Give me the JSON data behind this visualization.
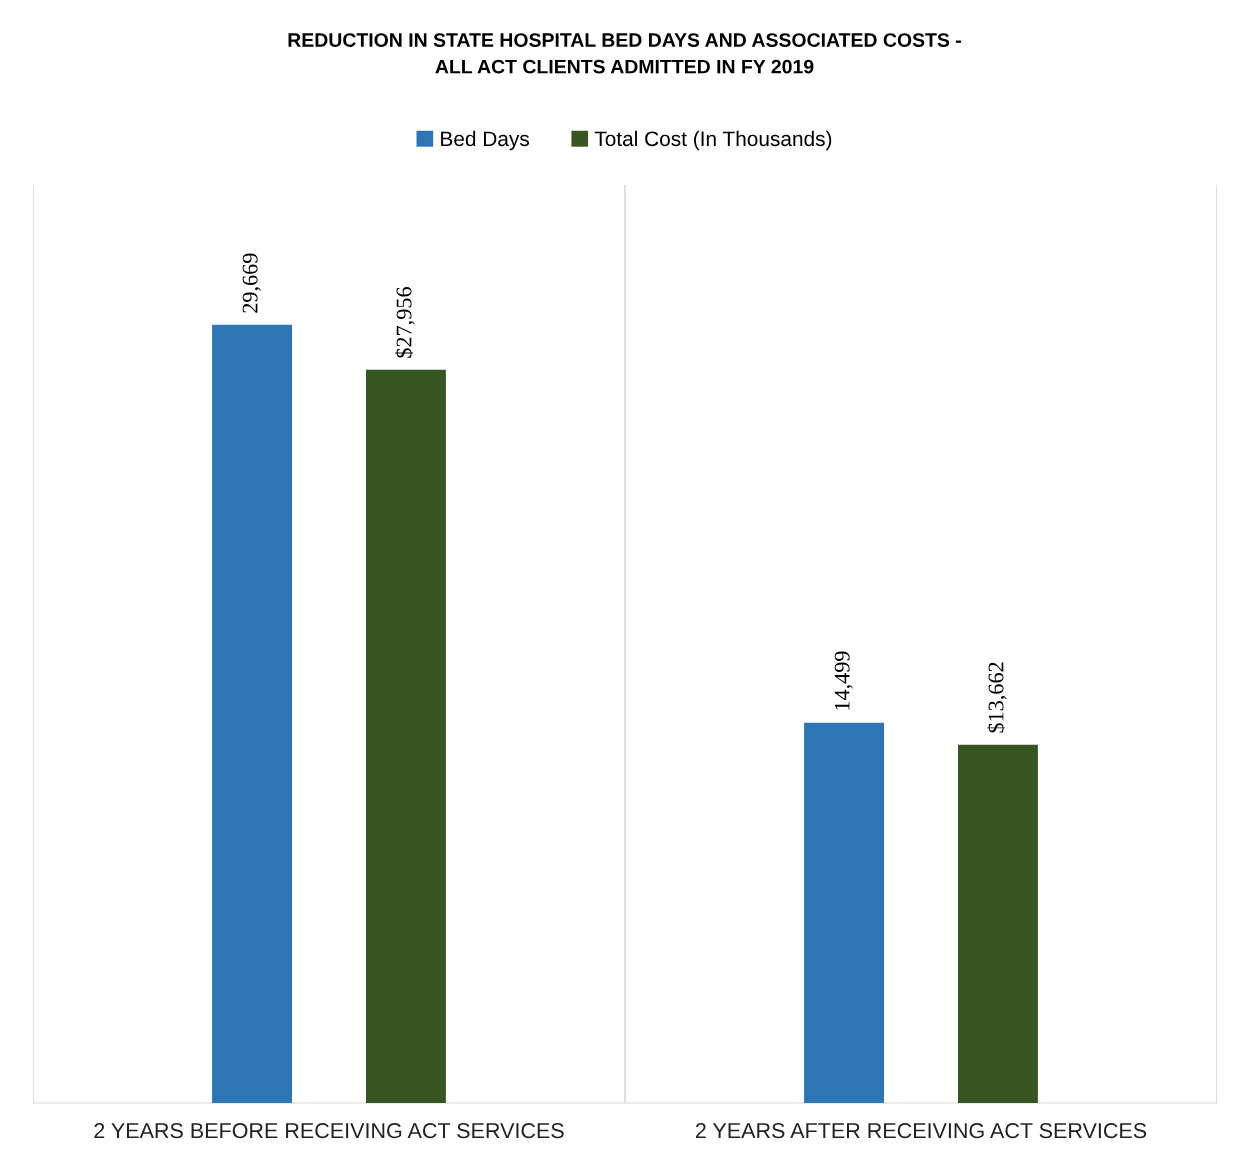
{
  "chart_data": {
    "type": "bar",
    "title": "REDUCTION IN STATE HOSPITAL BED DAYS AND ASSOCIATED COSTS -\nALL ACT CLIENTS ADMITTED IN FY 2019",
    "categories": [
      "2 YEARS BEFORE RECEIVING ACT SERVICES",
      "2 YEARS AFTER RECEIVING ACT SERVICES"
    ],
    "series": [
      {
        "name": "Bed Days",
        "color": "#2e75b6",
        "values": [
          29669,
          14499
        ],
        "value_labels": [
          "29,669",
          "14,499"
        ]
      },
      {
        "name": "Total Cost (In Thousands)",
        "color": "#375623",
        "values": [
          27956,
          13662
        ],
        "value_labels": [
          "$27,956",
          "$13,662"
        ]
      }
    ],
    "ylim": [
      0,
      35000
    ],
    "tick_labels": "x",
    "grid": "x",
    "legend": "top"
  }
}
